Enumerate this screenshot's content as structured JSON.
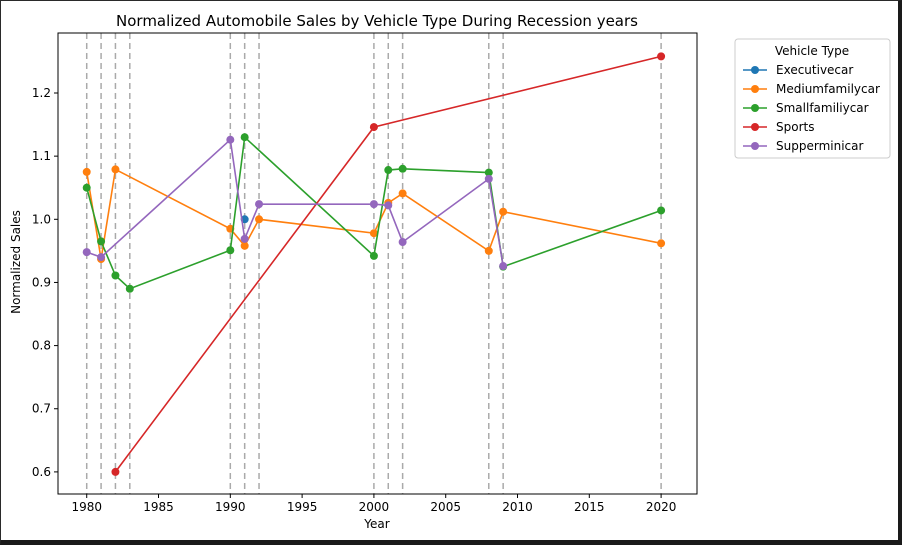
{
  "chart_data": {
    "type": "line",
    "title": "Normalized Automobile Sales by Vehicle Type During Recession years",
    "xlabel": "Year",
    "ylabel": "Normalized Sales",
    "xlim": [
      1978.0,
      2022.5
    ],
    "ylim": [
      0.565,
      1.295
    ],
    "xticks": [
      1980,
      1985,
      1990,
      1995,
      2000,
      2005,
      2010,
      2015,
      2020
    ],
    "yticks": [
      0.6,
      0.7,
      0.8,
      0.9,
      1.0,
      1.1,
      1.2
    ],
    "xtick_labels": [
      "1980",
      "1985",
      "1990",
      "1995",
      "2000",
      "2005",
      "2010",
      "2015",
      "2020"
    ],
    "ytick_labels": [
      "0.6",
      "0.7",
      "0.8",
      "0.9",
      "1.0",
      "1.1",
      "1.2"
    ],
    "recession_lines": [
      1980,
      1981,
      1982,
      1983,
      1990,
      1991,
      1992,
      2000,
      2001,
      2002,
      2008,
      2009,
      2020
    ],
    "grid": false,
    "legend": {
      "title": "Vehicle Type",
      "placement": "outside-top-right"
    },
    "series": [
      {
        "name": "Executivecar",
        "color": "#1f77b4",
        "points": [
          [
            1991,
            1.0
          ]
        ]
      },
      {
        "name": "Mediumfamilycar",
        "color": "#ff7f0e",
        "points": [
          [
            1980,
            1.075
          ],
          [
            1981,
            0.937
          ],
          [
            1982,
            1.079
          ],
          [
            1990,
            0.985
          ],
          [
            1991,
            0.958
          ],
          [
            1992,
            1.0
          ],
          [
            2000,
            0.978
          ],
          [
            2001,
            1.026
          ],
          [
            2002,
            1.041
          ],
          [
            2008,
            0.95
          ],
          [
            2009,
            1.012
          ],
          [
            2020,
            0.962
          ]
        ]
      },
      {
        "name": "Smallfamiliycar",
        "color": "#2ca02c",
        "points": [
          [
            1980,
            1.05
          ],
          [
            1981,
            0.965
          ],
          [
            1982,
            0.911
          ],
          [
            1983,
            0.89
          ],
          [
            1990,
            0.951
          ],
          [
            1991,
            1.13
          ],
          [
            2000,
            0.942
          ],
          [
            2001,
            1.078
          ],
          [
            2002,
            1.08
          ],
          [
            2008,
            1.074
          ],
          [
            2009,
            0.925
          ],
          [
            2020,
            1.014
          ]
        ]
      },
      {
        "name": "Sports",
        "color": "#d62728",
        "points": [
          [
            1982,
            0.6
          ],
          [
            2000,
            1.146
          ],
          [
            2020,
            1.258
          ]
        ]
      },
      {
        "name": "Supperminicar",
        "color": "#9467bd",
        "points": [
          [
            1980,
            0.948
          ],
          [
            1981,
            0.94
          ],
          [
            1990,
            1.126
          ],
          [
            1991,
            0.969
          ],
          [
            1992,
            1.024
          ],
          [
            2000,
            1.024
          ],
          [
            2001,
            1.022
          ],
          [
            2002,
            0.964
          ],
          [
            2008,
            1.064
          ],
          [
            2009,
            0.926
          ]
        ]
      }
    ]
  }
}
